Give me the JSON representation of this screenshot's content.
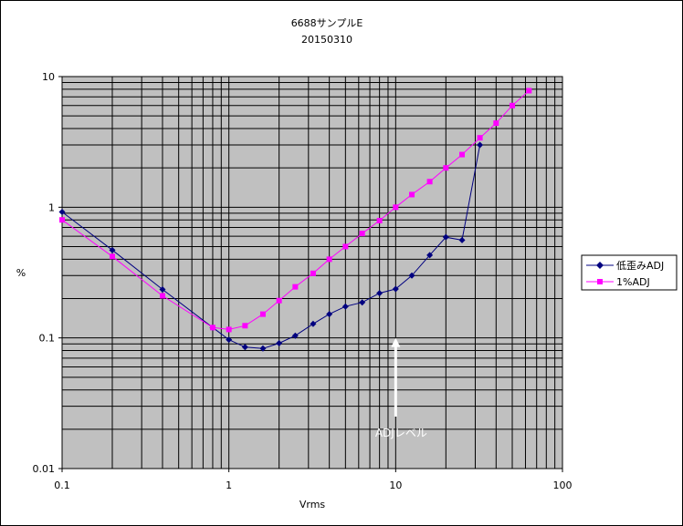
{
  "chart_data": {
    "type": "line",
    "title": "6688サンプルE",
    "subtitle": "20150310",
    "xlabel": "Vrms",
    "ylabel": "%",
    "xscale": "log",
    "yscale": "log",
    "xlim": [
      0.1,
      100
    ],
    "ylim": [
      0.01,
      10
    ],
    "x_ticks": [
      "0.1",
      "1",
      "10",
      "100"
    ],
    "y_ticks": [
      "0.01",
      "0.1",
      "1",
      "10"
    ],
    "grid": true,
    "plot_background": "#c0c0c0",
    "legend_position": "right",
    "series": [
      {
        "name": "低歪みADJ",
        "color": "#000080",
        "marker": "diamond",
        "points": [
          [
            0.1,
            0.92
          ],
          [
            0.2,
            0.47
          ],
          [
            0.4,
            0.235
          ],
          [
            0.8,
            0.12
          ],
          [
            1.0,
            0.097
          ],
          [
            1.25,
            0.085
          ],
          [
            1.6,
            0.083
          ],
          [
            2.0,
            0.091
          ],
          [
            2.5,
            0.104
          ],
          [
            3.2,
            0.128
          ],
          [
            4.0,
            0.152
          ],
          [
            5.0,
            0.174
          ],
          [
            6.3,
            0.187
          ],
          [
            8.0,
            0.22
          ],
          [
            10.0,
            0.237
          ],
          [
            12.5,
            0.3
          ],
          [
            16.0,
            0.43
          ],
          [
            20.0,
            0.59
          ],
          [
            25.0,
            0.56
          ],
          [
            32.0,
            3.0
          ]
        ]
      },
      {
        "name": "1%ADJ",
        "color": "#ff00ff",
        "marker": "square",
        "points": [
          [
            0.1,
            0.8
          ],
          [
            0.2,
            0.42
          ],
          [
            0.4,
            0.21
          ],
          [
            0.8,
            0.12
          ],
          [
            1.0,
            0.116
          ],
          [
            1.25,
            0.124
          ],
          [
            1.6,
            0.152
          ],
          [
            2.0,
            0.193
          ],
          [
            2.5,
            0.246
          ],
          [
            3.2,
            0.312
          ],
          [
            4.0,
            0.4
          ],
          [
            5.0,
            0.5
          ],
          [
            6.3,
            0.63
          ],
          [
            8.0,
            0.79
          ],
          [
            10.0,
            1.0
          ],
          [
            12.5,
            1.25
          ],
          [
            16.0,
            1.57
          ],
          [
            20.0,
            2.0
          ],
          [
            25.0,
            2.53
          ],
          [
            32.0,
            3.4
          ],
          [
            40.0,
            4.4
          ],
          [
            50.0,
            6.0
          ],
          [
            63.0,
            7.8
          ]
        ]
      }
    ],
    "annotations": [
      {
        "text": "ADJレベル",
        "x": 10,
        "arrow_from_y": 0.025,
        "arrow_to_y": 0.1,
        "color": "#ffffff"
      }
    ]
  }
}
